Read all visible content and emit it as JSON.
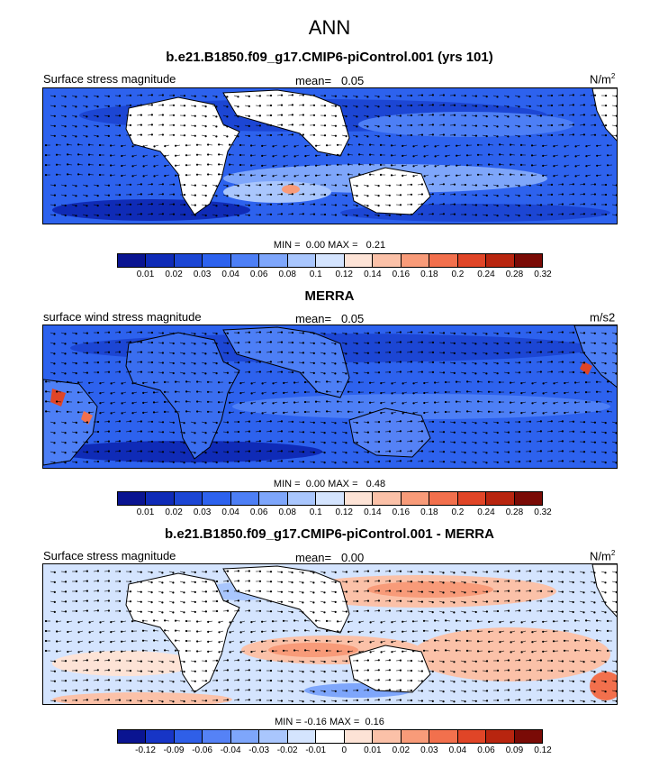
{
  "figure_title": "ANN",
  "colors": {
    "seq": [
      "#0a1491",
      "#0f2bb7",
      "#1c46d4",
      "#2d62ee",
      "#4d7ff6",
      "#7ea6fb",
      "#a9c6fd",
      "#d4e4fe",
      "#fde3d6",
      "#fbc1a8",
      "#f89b79",
      "#f2704d",
      "#e04527",
      "#b8250f",
      "#7a0b06"
    ],
    "div": [
      "#0a1491",
      "#1735c6",
      "#2f5fe8",
      "#5582f6",
      "#7ea6fb",
      "#a9c6fd",
      "#d4e4fe",
      "#ffffff",
      "#fde3d6",
      "#fbc1a8",
      "#f89b79",
      "#f2704d",
      "#e04527",
      "#b8250f",
      "#7a0b06"
    ]
  },
  "chart_data": [
    {
      "type": "heatmap",
      "title": "b.e21.B1850.f09_g17.CMIP6-piControl.001 (yrs 101)",
      "left_label": "Surface stress magnitude",
      "mean_label": "mean=",
      "mean_value": "0.05",
      "units": "N/m",
      "units_sup": "2",
      "min_label": "MIN =",
      "min_value": "0.00",
      "max_label": "MAX =",
      "max_value": "0.21",
      "colorbar_levels": [
        "0.01",
        "0.02",
        "0.03",
        "0.04",
        "0.06",
        "0.08",
        "0.1",
        "0.12",
        "0.14",
        "0.16",
        "0.18",
        "0.2",
        "0.24",
        "0.28",
        "0.32"
      ],
      "overlay": "wind stress vectors"
    },
    {
      "type": "heatmap",
      "title": "MERRA",
      "left_label": "surface wind stress magnitude",
      "mean_label": "mean=",
      "mean_value": "0.05",
      "units": "m/s2",
      "units_sup": "",
      "min_label": "MIN =",
      "min_value": "0.00",
      "max_label": "MAX =",
      "max_value": "0.48",
      "colorbar_levels": [
        "0.01",
        "0.02",
        "0.03",
        "0.04",
        "0.06",
        "0.08",
        "0.1",
        "0.12",
        "0.14",
        "0.16",
        "0.18",
        "0.2",
        "0.24",
        "0.28",
        "0.32"
      ],
      "overlay": "wind stress vectors"
    },
    {
      "type": "heatmap",
      "title": "b.e21.B1850.f09_g17.CMIP6-piControl.001 - MERRA",
      "left_label": "Surface stress magnitude",
      "mean_label": "mean=",
      "mean_value": "0.00",
      "units": "N/m",
      "units_sup": "2",
      "min_label": "MIN =",
      "min_value": "-0.16",
      "max_label": "MAX =",
      "max_value": "0.16",
      "colorbar_levels": [
        "-0.12",
        "-0.09",
        "-0.06",
        "-0.04",
        "-0.03",
        "-0.02",
        "-0.01",
        "0",
        "0.01",
        "0.02",
        "0.03",
        "0.04",
        "0.06",
        "0.09",
        "0.12"
      ],
      "overlay": "difference vectors"
    }
  ]
}
